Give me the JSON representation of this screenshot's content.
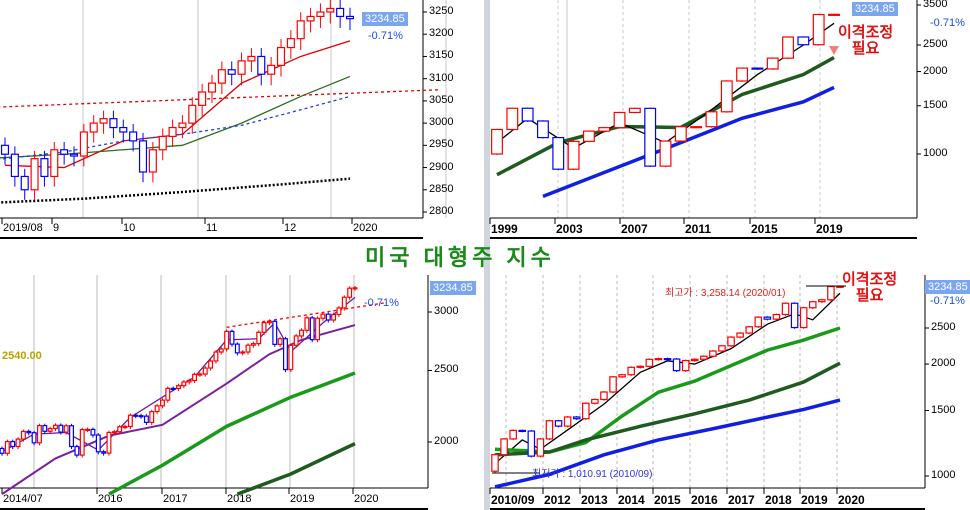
{
  "title": "미국 대형주 지수",
  "last_price": "3234.85",
  "change_pct": "-0.71%",
  "note": [
    "이격조정",
    "필요"
  ],
  "colors": {
    "up": "#ff0000",
    "down": "#0000ff"
  },
  "chart_data": [
    {
      "type": "candlestick",
      "name": "daily",
      "interval": "daily",
      "x_labels": [
        "2019/08",
        "9",
        "10",
        "11",
        "12",
        "2020"
      ],
      "y_ticks": [
        2800,
        2850,
        2900,
        2950,
        3000,
        3050,
        3100,
        3150,
        3200,
        3250
      ],
      "first_open": 2950,
      "closes": [
        2930,
        2880,
        2850,
        2920,
        2880,
        2940,
        2930,
        2926,
        2980,
        3000,
        3010,
        2990,
        2980,
        2960,
        2890,
        2940,
        2970,
        2990,
        3000,
        3040,
        3070,
        3090,
        3120,
        3110,
        3140,
        3150,
        3110,
        3130,
        3170,
        3190,
        3230,
        3240,
        3250,
        3258,
        3240,
        3235
      ],
      "lines": [
        {
          "name": "ma-short",
          "color": "#e00000",
          "style": "solid",
          "points": [
            [
              0,
              2905
            ],
            [
              6,
              2900
            ],
            [
              12,
              2960
            ],
            [
              18,
              2975
            ],
            [
              24,
              3090
            ],
            [
              30,
              3150
            ],
            [
              35,
              3185
            ]
          ]
        },
        {
          "name": "ma-mid",
          "color": "#2a6e1e",
          "style": "solid",
          "points": [
            [
              -2,
              2920
            ],
            [
              6,
              2930
            ],
            [
              12,
              2940
            ],
            [
              18,
              2950
            ],
            [
              24,
              3000
            ],
            [
              30,
              3060
            ],
            [
              35,
              3105
            ]
          ]
        },
        {
          "name": "ma-long",
          "color": "#2040e0",
          "style": "dashed",
          "points": [
            [
              -2,
              2915
            ],
            [
              6,
              2935
            ],
            [
              12,
              2960
            ],
            [
              18,
              2975
            ],
            [
              24,
              2995
            ],
            [
              30,
              3030
            ],
            [
              35,
              3060
            ]
          ]
        },
        {
          "name": "ma-200",
          "color": "#000000",
          "style": "dotted",
          "points": [
            [
              -2,
              2820
            ],
            [
              8,
              2830
            ],
            [
              18,
              2845
            ],
            [
              28,
              2862
            ],
            [
              35,
              2875
            ]
          ]
        },
        {
          "name": "trendline",
          "color": "#e00000",
          "style": "dashed",
          "points": [
            [
              -2,
              3035
            ],
            [
              44,
              3075
            ]
          ]
        }
      ]
    },
    {
      "type": "candlestick",
      "name": "yearly",
      "interval": "yearly",
      "scale": "log",
      "x_labels": [
        "1999",
        "2003",
        "2007",
        "2011",
        "2015",
        "2019"
      ],
      "y_ticks": [
        1000,
        1500,
        2000,
        2500,
        3500
      ],
      "first_open": 1000,
      "closes": [
        1229,
        1469,
        1320,
        1148,
        880,
        1112,
        1212,
        1248,
        1418,
        1468,
        903,
        1115,
        1258,
        1258,
        1426,
        1848,
        2059,
        2044,
        2239,
        2674,
        2507,
        3231,
        3235
      ],
      "lines": [
        {
          "name": "ma-blue",
          "color": "#1020e0",
          "style": "thick",
          "points": [
            [
              3,
              700
            ],
            [
              8,
              900
            ],
            [
              12,
              1100
            ],
            [
              16,
              1350
            ],
            [
              20,
              1550
            ],
            [
              22,
              1750
            ]
          ]
        },
        {
          "name": "ma-darkgreen",
          "color": "#1f5a1f",
          "style": "thick",
          "points": [
            [
              0,
              840
            ],
            [
              4,
              1100
            ],
            [
              8,
              1260
            ],
            [
              12,
              1250
            ],
            [
              16,
              1650
            ],
            [
              20,
              1950
            ],
            [
              22,
              2250
            ]
          ]
        },
        {
          "name": "ma-fast",
          "color": "#000000",
          "style": "solid",
          "points": [
            [
              0,
              1100
            ],
            [
              2,
              1350
            ],
            [
              5,
              1050
            ],
            [
              8,
              1300
            ],
            [
              11,
              1100
            ],
            [
              14,
              1450
            ],
            [
              17,
              1950
            ],
            [
              20,
              2500
            ],
            [
              22,
              3000
            ]
          ]
        }
      ]
    },
    {
      "type": "candlestick",
      "name": "monthly",
      "interval": "monthly",
      "scale": "log",
      "x_labels": [
        "2014/07",
        "2016",
        "2017",
        "2018",
        "2019",
        "2020"
      ],
      "y_ticks": [
        2000,
        2500,
        3000
      ],
      "side_value": "2540.00",
      "first_open": 1960,
      "closes": [
        1931,
        2003,
        1972,
        2018,
        2067,
        2059,
        1995,
        2105,
        2068,
        2086,
        2107,
        2063,
        2104,
        1972,
        1920,
        2079,
        2080,
        2044,
        1940,
        1932,
        2060,
        2065,
        2097,
        2099,
        2174,
        2171,
        2168,
        2126,
        2199,
        2239,
        2279,
        2364,
        2363,
        2384,
        2412,
        2423,
        2470,
        2472,
        2519,
        2575,
        2648,
        2674,
        2824,
        2714,
        2641,
        2648,
        2705,
        2718,
        2816,
        2902,
        2914,
        2712,
        2760,
        2507,
        2704,
        2784,
        2834,
        2946,
        2752,
        2942,
        2980,
        2926,
        2977,
        3038,
        3141,
        3231,
        3235
      ],
      "lines": [
        {
          "name": "ma-fast",
          "color": "#6a1b9a",
          "style": "solid",
          "points": [
            [
              0,
              1940
            ],
            [
              6,
              2050
            ],
            [
              12,
              2060
            ],
            [
              18,
              1950
            ],
            [
              24,
              2160
            ],
            [
              36,
              2450
            ],
            [
              42,
              2750
            ],
            [
              48,
              2760
            ],
            [
              51,
              2900
            ],
            [
              54,
              2650
            ],
            [
              60,
              2900
            ],
            [
              66,
              3140
            ]
          ]
        },
        {
          "name": "ma-purple",
          "color": "#7b1fa2",
          "style": "medium",
          "points": [
            [
              0,
              1700
            ],
            [
              10,
              1900
            ],
            [
              20,
              2040
            ],
            [
              30,
              2110
            ],
            [
              42,
              2400
            ],
            [
              50,
              2630
            ],
            [
              56,
              2750
            ],
            [
              66,
              2880
            ]
          ]
        },
        {
          "name": "ma-green",
          "color": "#1a9a1a",
          "style": "thick",
          "points": [
            [
              20,
              1700
            ],
            [
              30,
              1860
            ],
            [
              42,
              2100
            ],
            [
              54,
              2300
            ],
            [
              66,
              2480
            ]
          ]
        },
        {
          "name": "ma-darkgreen",
          "color": "#1f5a1f",
          "style": "thick",
          "points": [
            [
              44,
              1700
            ],
            [
              54,
              1810
            ],
            [
              66,
              1990
            ]
          ]
        },
        {
          "name": "trendline",
          "color": "#ff0000",
          "style": "dashed",
          "points": [
            [
              42,
              2860
            ],
            [
              72,
              3090
            ]
          ]
        }
      ]
    },
    {
      "type": "candlestick",
      "name": "quarterly",
      "interval": "quarterly",
      "scale": "log",
      "x_labels": [
        "2010/09",
        "2012",
        "2013",
        "2014",
        "2015",
        "2016",
        "2017",
        "2018",
        "2019",
        "2020"
      ],
      "y_ticks": [
        1000,
        1500,
        2000,
        2500
      ],
      "high_label": "최고가 : 3,258.14 (2020/01)",
      "low_label": "최저가 : 1,010.91 (2010/09)",
      "first_open": 1030,
      "closes": [
        1141,
        1258,
        1326,
        1321,
        1131,
        1258,
        1408,
        1362,
        1441,
        1426,
        1569,
        1606,
        1682,
        1848,
        1872,
        1960,
        1972,
        2059,
        2068,
        2063,
        1920,
        2044,
        2060,
        2099,
        2168,
        2239,
        2363,
        2423,
        2519,
        2674,
        2641,
        2718,
        2914,
        2507,
        2834,
        2942,
        2977,
        3231,
        3235
      ],
      "lines": [
        {
          "name": "ma-fast",
          "color": "#000000",
          "style": "solid",
          "points": [
            [
              0,
              1080
            ],
            [
              3,
              1250
            ],
            [
              5,
              1180
            ],
            [
              8,
              1330
            ],
            [
              12,
              1560
            ],
            [
              16,
              1900
            ],
            [
              19,
              2040
            ],
            [
              22,
              2000
            ],
            [
              26,
              2200
            ],
            [
              30,
              2560
            ],
            [
              33,
              2730
            ],
            [
              35,
              2630
            ],
            [
              38,
              3100
            ]
          ]
        },
        {
          "name": "ma-green",
          "color": "#1a9a1a",
          "style": "thick",
          "points": [
            [
              0,
              1180
            ],
            [
              6,
              1160
            ],
            [
              10,
              1230
            ],
            [
              14,
              1450
            ],
            [
              18,
              1680
            ],
            [
              22,
              1800
            ],
            [
              26,
              1980
            ],
            [
              30,
              2180
            ],
            [
              34,
              2320
            ],
            [
              38,
              2500
            ]
          ]
        },
        {
          "name": "ma-darkgreen",
          "color": "#1f5a1f",
          "style": "thick",
          "points": [
            [
              0,
              1140
            ],
            [
              6,
              1160
            ],
            [
              10,
              1250
            ],
            [
              16,
              1360
            ],
            [
              22,
              1470
            ],
            [
              28,
              1600
            ],
            [
              34,
              1790
            ],
            [
              38,
              2010
            ]
          ]
        },
        {
          "name": "ma-blue",
          "color": "#1020e0",
          "style": "thick",
          "points": [
            [
              0,
              935
            ],
            [
              6,
              1010
            ],
            [
              12,
              1140
            ],
            [
              18,
              1250
            ],
            [
              24,
              1340
            ],
            [
              30,
              1440
            ],
            [
              34,
              1510
            ],
            [
              38,
              1600
            ]
          ]
        }
      ]
    }
  ]
}
